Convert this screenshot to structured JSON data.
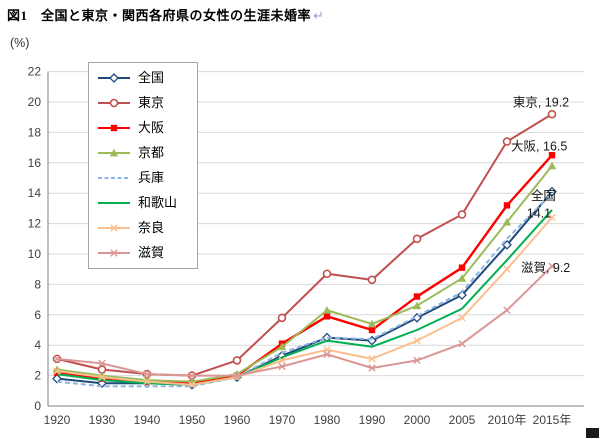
{
  "figure": {
    "title": "図1　全国と東京・関西各府県の女性の生涯未婚率",
    "return_mark": "↵"
  },
  "chart_data": {
    "type": "line",
    "title": "図1 全国と東京・関西各府県の女性の生涯未婚率",
    "xlabel": "",
    "ylabel": "(%)",
    "ylim": [
      0,
      22
    ],
    "ytick_step": 2,
    "grid": true,
    "legend_position": "upper-left-inside",
    "categories": [
      "1920",
      "1930",
      "1940",
      "1950",
      "1960",
      "1970",
      "1980",
      "1990",
      "2000",
      "2005",
      "2010年",
      "2015年"
    ],
    "series": [
      {
        "name": "全国",
        "color": "#1F497D",
        "marker": "diamond-open",
        "dash": false,
        "values": [
          1.8,
          1.5,
          1.5,
          1.4,
          1.9,
          3.3,
          4.5,
          4.3,
          5.8,
          7.3,
          10.6,
          14.1
        ]
      },
      {
        "name": "東京",
        "color": "#C0504D",
        "marker": "circle-open",
        "dash": false,
        "values": [
          3.1,
          2.4,
          2.1,
          2.0,
          3.0,
          5.8,
          8.7,
          8.3,
          11.0,
          12.6,
          17.4,
          19.2
        ]
      },
      {
        "name": "大阪",
        "color": "#FF0000",
        "marker": "square",
        "dash": false,
        "values": [
          2.2,
          1.8,
          1.6,
          1.5,
          2.0,
          4.1,
          5.9,
          5.0,
          7.2,
          9.1,
          13.2,
          16.5
        ]
      },
      {
        "name": "京都",
        "color": "#9BBB59",
        "marker": "triangle",
        "dash": false,
        "values": [
          2.4,
          2.0,
          1.7,
          1.6,
          2.1,
          3.9,
          6.3,
          5.4,
          6.6,
          8.4,
          12.1,
          15.8
        ]
      },
      {
        "name": "兵庫",
        "color": "#8DB4E2",
        "marker": "none",
        "dash": true,
        "values": [
          1.6,
          1.3,
          1.3,
          1.3,
          1.9,
          3.5,
          4.5,
          4.4,
          5.9,
          7.5,
          11.0,
          14.0
        ]
      },
      {
        "name": "和歌山",
        "color": "#00B050",
        "marker": "none",
        "dash": false,
        "values": [
          2.1,
          1.7,
          1.5,
          1.4,
          1.9,
          3.2,
          4.3,
          3.9,
          5.0,
          6.4,
          9.6,
          12.9
        ]
      },
      {
        "name": "奈良",
        "color": "#FABF8F",
        "marker": "x",
        "dash": false,
        "values": [
          2.3,
          1.9,
          1.6,
          1.4,
          1.9,
          3.0,
          3.7,
          3.1,
          4.3,
          5.8,
          9.0,
          12.4
        ]
      },
      {
        "name": "滋賀",
        "color": "#D99694",
        "marker": "x",
        "dash": false,
        "values": [
          3.1,
          2.8,
          2.1,
          2.0,
          2.0,
          2.6,
          3.4,
          2.5,
          3.0,
          4.1,
          6.3,
          9.2
        ]
      }
    ],
    "annotations": [
      {
        "text": "東京, 19.2",
        "x": 10.13,
        "y": 19.7
      },
      {
        "text": "大阪, 16.5",
        "x": 10.09,
        "y": 16.8
      },
      {
        "text": "全国",
        "x": 10.53,
        "y": 13.55
      },
      {
        "text": "14.1",
        "x": 10.44,
        "y": 12.4
      },
      {
        "text": "滋賀, 9.2",
        "x": 10.31,
        "y": 8.8
      }
    ]
  }
}
